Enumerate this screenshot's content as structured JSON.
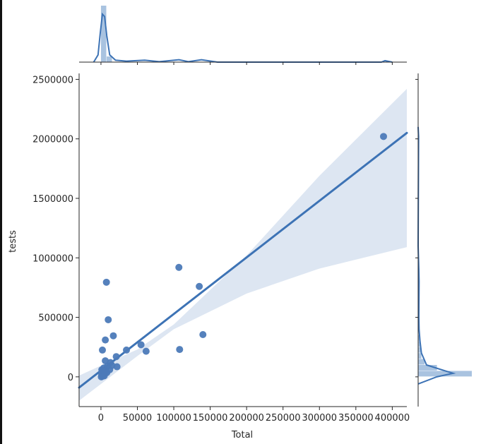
{
  "chart_data": {
    "type": "scatter",
    "kind": "joint-plot with regression line, confidence band and marginal distributions",
    "xlabel": "Total",
    "ylabel": "tests",
    "xlim": [
      -30000,
      420000
    ],
    "ylim": [
      -250000,
      2550000
    ],
    "x_ticks": [
      0,
      50000,
      100000,
      150000,
      200000,
      250000,
      300000,
      350000,
      400000
    ],
    "x_tick_labels": [
      "0",
      "50000",
      "100000",
      "150000",
      "200000",
      "250000",
      "300000",
      "350000",
      "400000"
    ],
    "y_ticks": [
      0,
      500000,
      1000000,
      1500000,
      2000000,
      2500000
    ],
    "y_tick_labels": [
      "0",
      "500000",
      "1000000",
      "1500000",
      "2000000",
      "2500000"
    ],
    "grid": false,
    "colors": {
      "points": "#4c7ab8",
      "line": "#3d73b5",
      "band": "#dde6f2",
      "hist": "#a9c3e0"
    },
    "points": [
      {
        "x": 388000,
        "y": 2020000
      },
      {
        "x": 107000,
        "y": 920000
      },
      {
        "x": 135000,
        "y": 760000
      },
      {
        "x": 7500,
        "y": 795000
      },
      {
        "x": 10000,
        "y": 480000
      },
      {
        "x": 17000,
        "y": 345000
      },
      {
        "x": 140000,
        "y": 355000
      },
      {
        "x": 6000,
        "y": 310000
      },
      {
        "x": 55000,
        "y": 270000
      },
      {
        "x": 108000,
        "y": 230000
      },
      {
        "x": 62000,
        "y": 215000
      },
      {
        "x": 35000,
        "y": 225000
      },
      {
        "x": 2000,
        "y": 225000
      },
      {
        "x": 21000,
        "y": 170000
      },
      {
        "x": 6000,
        "y": 135000
      },
      {
        "x": 13000,
        "y": 120000
      },
      {
        "x": 15000,
        "y": 95000
      },
      {
        "x": 22000,
        "y": 85000
      },
      {
        "x": 9000,
        "y": 90000
      },
      {
        "x": 4000,
        "y": 75000
      },
      {
        "x": 12000,
        "y": 60000
      },
      {
        "x": 2500,
        "y": 55000
      },
      {
        "x": 7000,
        "y": 45000
      },
      {
        "x": 1500,
        "y": 40000
      },
      {
        "x": 5000,
        "y": 30000
      },
      {
        "x": 3000,
        "y": 20000
      },
      {
        "x": 1000,
        "y": 15000
      },
      {
        "x": 2000,
        "y": 5000
      },
      {
        "x": 500,
        "y": 0
      },
      {
        "x": 4500,
        "y": 8000
      },
      {
        "x": 8000,
        "y": 35000
      },
      {
        "x": 1200,
        "y": 60000
      }
    ],
    "regression_line": [
      {
        "x": -30000,
        "y": -90000
      },
      {
        "x": 420000,
        "y": 2050000
      }
    ],
    "confidence_band": {
      "upper": [
        {
          "x": -30000,
          "y": 10000
        },
        {
          "x": 0,
          "y": 95000
        },
        {
          "x": 50000,
          "y": 230000
        },
        {
          "x": 100000,
          "y": 440000
        },
        {
          "x": 200000,
          "y": 1020000
        },
        {
          "x": 300000,
          "y": 1690000
        },
        {
          "x": 420000,
          "y": 2420000
        }
      ],
      "lower": [
        {
          "x": -30000,
          "y": -200000
        },
        {
          "x": 0,
          "y": -60000
        },
        {
          "x": 50000,
          "y": 175000
        },
        {
          "x": 100000,
          "y": 400000
        },
        {
          "x": 200000,
          "y": 700000
        },
        {
          "x": 300000,
          "y": 910000
        },
        {
          "x": 420000,
          "y": 1090000
        }
      ]
    },
    "marginal_x": {
      "hist_bin_edges": [
        0,
        7800,
        15600
      ],
      "hist_relative_heights": [
        1.0,
        0.1
      ],
      "kde": [
        {
          "x": -10000,
          "y": 0.0
        },
        {
          "x": -4000,
          "y": 0.15
        },
        {
          "x": -1000,
          "y": 0.6
        },
        {
          "x": 2000,
          "y": 1.0
        },
        {
          "x": 5000,
          "y": 0.95
        },
        {
          "x": 8000,
          "y": 0.55
        },
        {
          "x": 12000,
          "y": 0.15
        },
        {
          "x": 20000,
          "y": 0.04
        },
        {
          "x": 35000,
          "y": 0.02
        },
        {
          "x": 60000,
          "y": 0.04
        },
        {
          "x": 80000,
          "y": 0.01
        },
        {
          "x": 107000,
          "y": 0.05
        },
        {
          "x": 120000,
          "y": 0.01
        },
        {
          "x": 138000,
          "y": 0.05
        },
        {
          "x": 160000,
          "y": 0.0
        },
        {
          "x": 385000,
          "y": 0.0
        },
        {
          "x": 390000,
          "y": 0.03
        },
        {
          "x": 400000,
          "y": 0.0
        }
      ]
    },
    "marginal_y": {
      "hist_bin_edges": [
        0,
        50000,
        100000,
        150000,
        200000,
        250000,
        300000,
        350000
      ],
      "hist_relative_heights": [
        1.0,
        0.35,
        0.12,
        0.06,
        0.05,
        0.04,
        0.03
      ],
      "kde": [
        {
          "y": -60000,
          "x": 0.0
        },
        {
          "y": 0,
          "x": 0.4
        },
        {
          "y": 30000,
          "x": 0.75
        },
        {
          "y": 60000,
          "x": 0.5
        },
        {
          "y": 100000,
          "x": 0.18
        },
        {
          "y": 200000,
          "x": 0.07
        },
        {
          "y": 300000,
          "x": 0.04
        },
        {
          "y": 400000,
          "x": 0.02
        },
        {
          "y": 500000,
          "x": 0.015
        },
        {
          "y": 800000,
          "x": 0.02
        },
        {
          "y": 900000,
          "x": 0.015
        },
        {
          "y": 1100000,
          "x": 0.0
        },
        {
          "y": 2020000,
          "x": 0.01
        },
        {
          "y": 2100000,
          "x": 0.0
        }
      ]
    }
  }
}
